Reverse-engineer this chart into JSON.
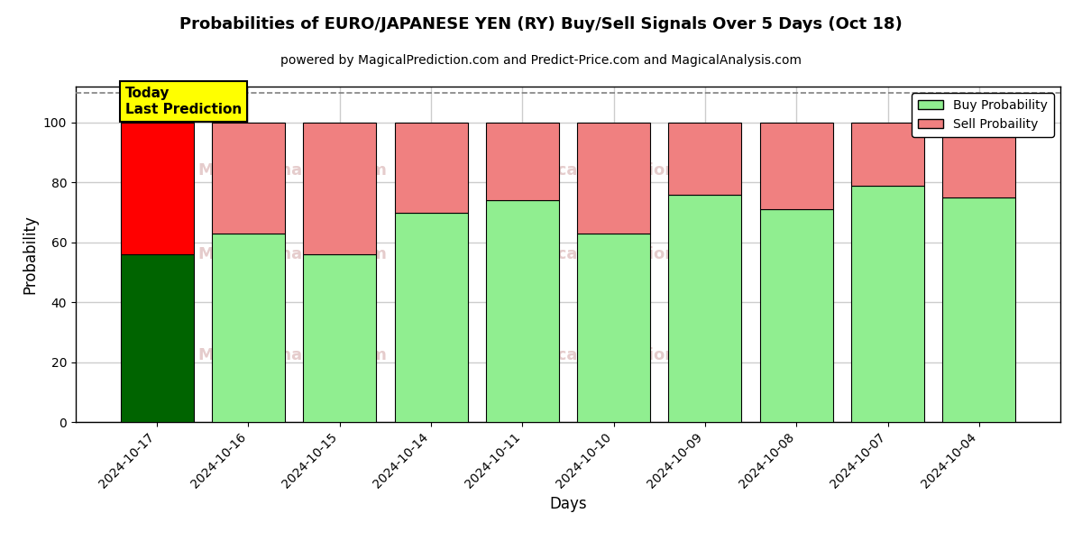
{
  "title": "Probabilities of EURO/JAPANESE YEN (RY) Buy/Sell Signals Over 5 Days (Oct 18)",
  "subtitle": "powered by MagicalPrediction.com and Predict-Price.com and MagicalAnalysis.com",
  "xlabel": "Days",
  "ylabel": "Probability",
  "categories": [
    "2024-10-17",
    "2024-10-16",
    "2024-10-15",
    "2024-10-14",
    "2024-10-11",
    "2024-10-10",
    "2024-10-09",
    "2024-10-08",
    "2024-10-07",
    "2024-10-04"
  ],
  "buy_values": [
    56,
    63,
    56,
    70,
    74,
    63,
    76,
    71,
    79,
    75
  ],
  "sell_values": [
    44,
    37,
    44,
    30,
    26,
    37,
    24,
    29,
    21,
    25
  ],
  "buy_color_today": "#006400",
  "sell_color_today": "#FF0000",
  "buy_color_hist": "#90EE90",
  "sell_color_hist": "#F08080",
  "bar_edge_color": "black",
  "bar_edge_width": 0.8,
  "ylim": [
    0,
    112
  ],
  "yticks": [
    0,
    20,
    40,
    60,
    80,
    100
  ],
  "dashed_line_y": 110,
  "legend_buy_label": "Buy Probability",
  "legend_sell_label": "Sell Probaility",
  "today_label_text": "Today\nLast Prediction",
  "today_label_color": "#FFFF00",
  "grid_color": "#cccccc",
  "bg_color": "#ffffff",
  "fig_width": 12,
  "fig_height": 6
}
